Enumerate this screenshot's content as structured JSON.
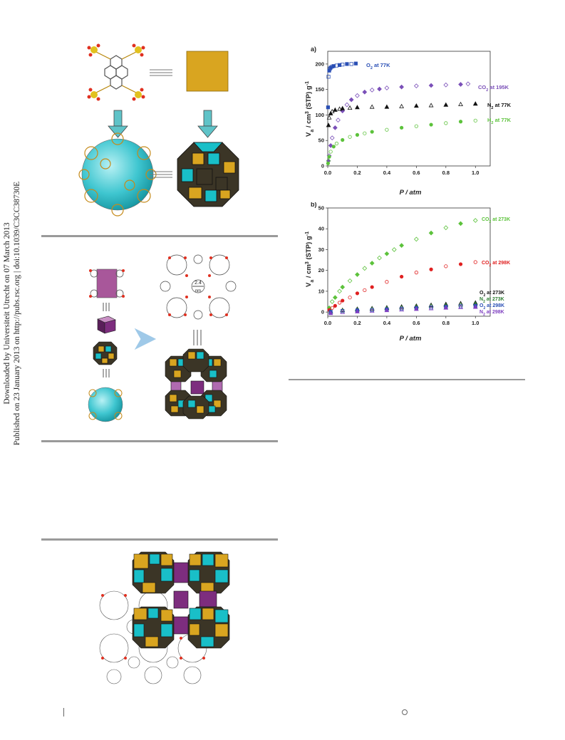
{
  "sidebar": {
    "line1": "Downloaded by Universiteit Utrecht on 07 March 2013",
    "line2": "Published on 23 January 2013 on http://pubs.rsc.org | doi:10.1039/C3CC38730E"
  },
  "scheme": {
    "pore_label_value": "2.4",
    "pore_label_unit": "nm"
  },
  "colors": {
    "cube_yellow": "#d9a520",
    "cyan": "#19bfc8",
    "dark_olive": "#3b3526",
    "purple": "#7d2d7e",
    "arrow_teal": "#5fc3c8",
    "o2_blue": "#2a4fb5",
    "co2_purple": "#7a4fb8",
    "n2_black": "#111111",
    "h2_green": "#5cc23b",
    "co2_red": "#e02020",
    "n2_298_purple": "#7e3fc0"
  },
  "chart_data": [
    {
      "type": "scatter",
      "panel_label": "a)",
      "xlabel": "P / atm",
      "ylabel": "V_a / cm^3 (STP) g^-1",
      "xlim": [
        0,
        1.1
      ],
      "ylim": [
        0,
        225
      ],
      "x_ticks": [
        0.0,
        0.2,
        0.4,
        0.6,
        0.8,
        1.0
      ],
      "x_tick_labels": [
        "0.0",
        "0.2",
        "0.4",
        "0.6",
        "0.8",
        "1.0"
      ],
      "y_ticks": [
        0,
        50,
        100,
        150,
        200
      ],
      "y_tick_labels": [
        "0",
        "50",
        "100",
        "150",
        "200"
      ],
      "series": [
        {
          "name": "O2 at 77K",
          "color": "#2a4fb5",
          "marker": "square",
          "x": [
            0.002,
            0.005,
            0.01,
            0.015,
            0.02,
            0.03,
            0.04,
            0.06,
            0.08,
            0.1,
            0.13,
            0.16,
            0.19
          ],
          "y": [
            115,
            175,
            187,
            191,
            193,
            195,
            196,
            197,
            198,
            199,
            200,
            200,
            201
          ]
        },
        {
          "name": "CO2 at 195K",
          "color": "#7a4fb8",
          "marker": "diamond",
          "x": [
            0.005,
            0.01,
            0.02,
            0.03,
            0.05,
            0.07,
            0.1,
            0.13,
            0.16,
            0.2,
            0.25,
            0.3,
            0.35,
            0.4,
            0.5,
            0.6,
            0.7,
            0.8,
            0.9,
            0.95
          ],
          "y": [
            10,
            20,
            40,
            55,
            75,
            90,
            108,
            120,
            130,
            138,
            145,
            149,
            151,
            153,
            155,
            157,
            158,
            159,
            160,
            161
          ]
        },
        {
          "name": "N2 at 77K",
          "color": "#111111",
          "marker": "triangle",
          "x": [
            0.005,
            0.01,
            0.02,
            0.03,
            0.05,
            0.08,
            0.1,
            0.15,
            0.2,
            0.3,
            0.4,
            0.5,
            0.6,
            0.7,
            0.8,
            0.9,
            1.0
          ],
          "y": [
            80,
            95,
            103,
            107,
            110,
            112,
            113,
            114,
            115,
            116,
            116,
            117,
            118,
            119,
            120,
            121,
            122
          ]
        },
        {
          "name": "H2 at 77K",
          "color": "#5cc23b",
          "marker": "circle",
          "x": [
            0.002,
            0.005,
            0.01,
            0.02,
            0.04,
            0.06,
            0.1,
            0.15,
            0.2,
            0.25,
            0.3,
            0.4,
            0.5,
            0.6,
            0.7,
            0.8,
            0.9,
            1.0
          ],
          "y": [
            5,
            10,
            18,
            28,
            38,
            44,
            51,
            57,
            61,
            64,
            67,
            71,
            75,
            78,
            81,
            84,
            87,
            89
          ]
        }
      ]
    },
    {
      "type": "scatter",
      "panel_label": "b)",
      "xlabel": "P / atm",
      "ylabel": "V_a / cm^3 (STP) g^-1",
      "xlim": [
        0,
        1.1
      ],
      "ylim": [
        -2,
        50
      ],
      "x_ticks": [
        0.0,
        0.2,
        0.4,
        0.6,
        0.8,
        1.0
      ],
      "x_tick_labels": [
        "0.0",
        "0.2",
        "0.4",
        "0.6",
        "0.8",
        "1.0"
      ],
      "y_ticks": [
        0,
        10,
        20,
        30,
        40,
        50
      ],
      "y_tick_labels": [
        "0",
        "10",
        "20",
        "30",
        "40",
        "50"
      ],
      "series": [
        {
          "name": "CO2 at 273K",
          "color": "#5cc23b",
          "marker": "diamond",
          "x": [
            0.01,
            0.03,
            0.05,
            0.08,
            0.1,
            0.15,
            0.2,
            0.25,
            0.3,
            0.35,
            0.4,
            0.45,
            0.5,
            0.6,
            0.7,
            0.8,
            0.9,
            1.0
          ],
          "y": [
            2,
            5,
            7,
            10,
            12,
            15,
            18,
            21,
            23.5,
            26,
            28,
            30,
            32,
            35,
            38,
            40.5,
            42.5,
            44
          ]
        },
        {
          "name": "CO2 at 298K",
          "color": "#e02020",
          "marker": "circle",
          "x": [
            0.01,
            0.03,
            0.05,
            0.08,
            0.1,
            0.15,
            0.2,
            0.25,
            0.3,
            0.4,
            0.5,
            0.6,
            0.7,
            0.8,
            0.9,
            1.0
          ],
          "y": [
            1,
            2,
            3,
            4.5,
            5.5,
            7,
            9,
            10.5,
            12,
            14.5,
            17,
            19,
            20.5,
            22,
            23,
            24
          ]
        },
        {
          "name": "O2 at 273K",
          "color": "#111111",
          "marker": "triangle",
          "x": [
            0.02,
            0.1,
            0.2,
            0.3,
            0.4,
            0.5,
            0.6,
            0.7,
            0.8,
            0.9,
            1.0
          ],
          "y": [
            0.3,
            1,
            1.5,
            1.8,
            2.2,
            2.6,
            3,
            3.4,
            3.8,
            4.2,
            4.5
          ]
        },
        {
          "name": "N2 at 273K",
          "color": "#2e7d32",
          "marker": "triangle",
          "x": [
            0.02,
            0.1,
            0.2,
            0.3,
            0.4,
            0.5,
            0.6,
            0.7,
            0.8,
            0.9,
            1.0
          ],
          "y": [
            0.2,
            0.8,
            1.2,
            1.5,
            1.9,
            2.2,
            2.6,
            3,
            3.3,
            3.6,
            4
          ]
        },
        {
          "name": "O2 at 298K",
          "color": "#2a4fb5",
          "marker": "square",
          "x": [
            0.02,
            0.1,
            0.2,
            0.3,
            0.4,
            0.5,
            0.6,
            0.7,
            0.8,
            0.9,
            1.0
          ],
          "y": [
            0.1,
            0.5,
            0.8,
            1,
            1.3,
            1.6,
            1.9,
            2.2,
            2.5,
            2.8,
            3
          ]
        },
        {
          "name": "N2 at 298K",
          "color": "#7e3fc0",
          "marker": "triangle",
          "x": [
            0.02,
            0.1,
            0.2,
            0.3,
            0.4,
            0.5,
            0.6,
            0.7,
            0.8,
            0.9,
            1.0
          ],
          "y": [
            -0.5,
            0,
            0.3,
            0.6,
            0.9,
            1.2,
            1.5,
            1.8,
            2.1,
            2.3,
            2.5
          ]
        }
      ],
      "legend_labels": [
        "O2 at 273K",
        "N2 at 273K",
        "O2 at 298K",
        "N2 at 298K"
      ]
    }
  ]
}
